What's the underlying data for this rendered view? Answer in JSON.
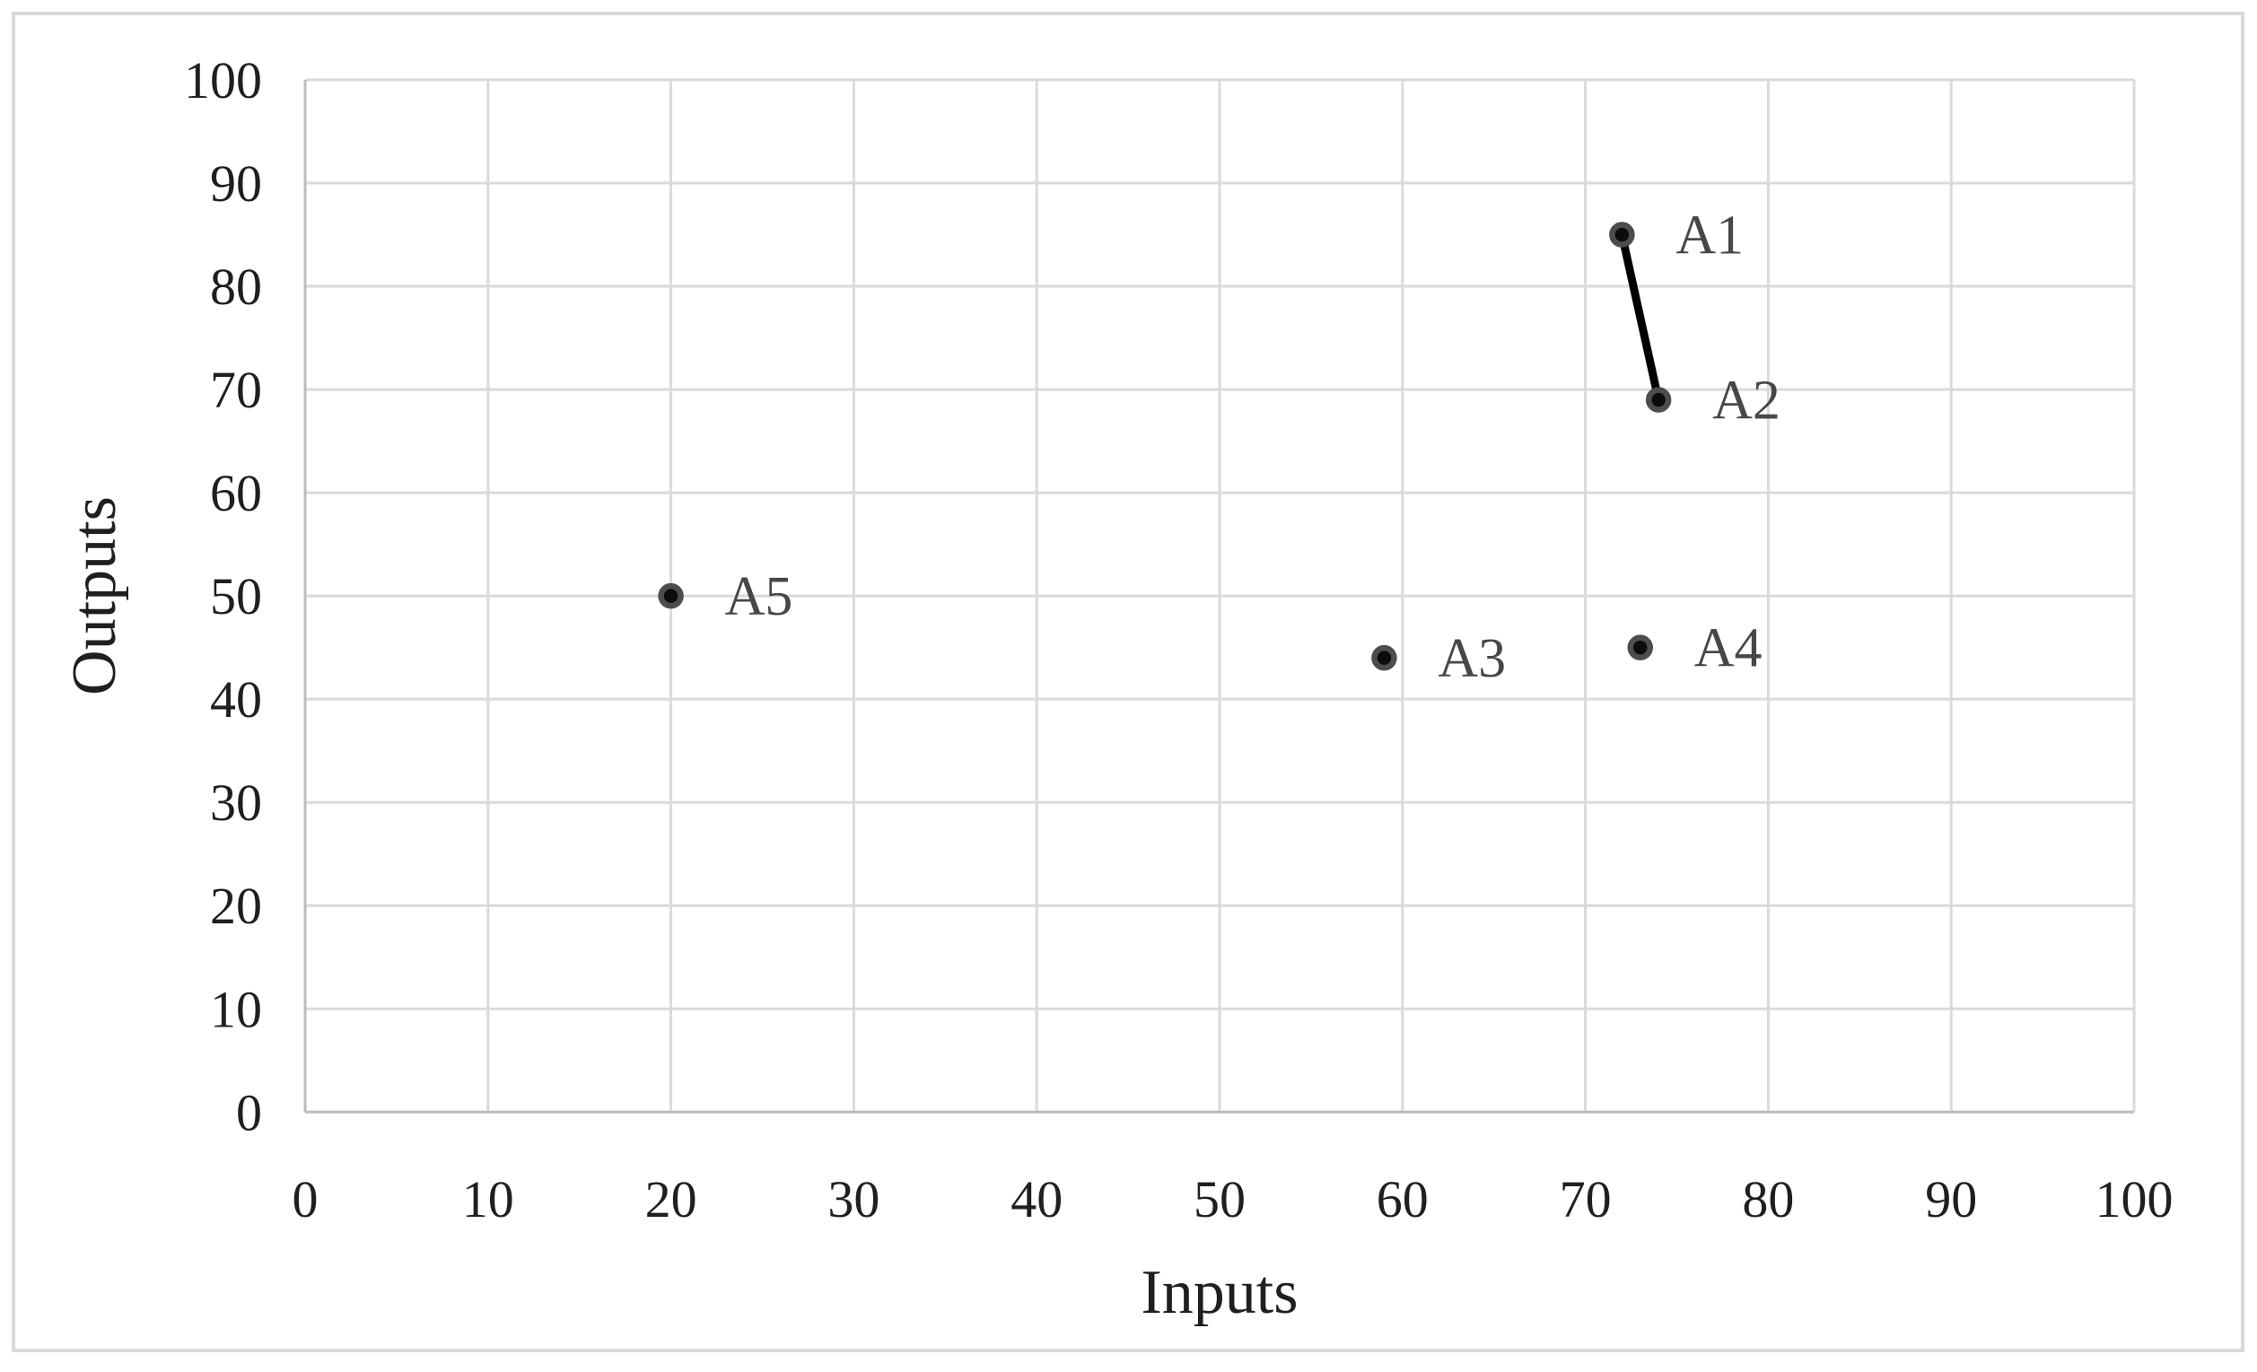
{
  "chart_data": {
    "type": "scatter",
    "title": "",
    "xlabel": "Inputs",
    "ylabel": "Outputs",
    "xlim": [
      0,
      100
    ],
    "ylim": [
      0,
      100
    ],
    "x_ticks": [
      0,
      10,
      20,
      30,
      40,
      50,
      60,
      70,
      80,
      90,
      100
    ],
    "y_ticks": [
      0,
      10,
      20,
      30,
      40,
      50,
      60,
      70,
      80,
      90,
      100
    ],
    "grid": true,
    "legend": "none",
    "points": [
      {
        "label": "A1",
        "x": 72,
        "y": 85
      },
      {
        "label": "A2",
        "x": 74,
        "y": 69
      },
      {
        "label": "A3",
        "x": 59,
        "y": 44
      },
      {
        "label": "A4",
        "x": 73,
        "y": 45
      },
      {
        "label": "A5",
        "x": 20,
        "y": 50
      }
    ],
    "segments": [
      {
        "from": "A1",
        "to": "A2"
      }
    ],
    "colors": {
      "gridline": "#dadada",
      "axis_line": "#bdbdbd",
      "chart_border": "#d9d9d9",
      "marker_fill": "#0c0c0c",
      "marker_ring": "#4d4d4d",
      "segment_line": "#000000",
      "tick_text": "#1f1f1f",
      "label_text": "#474747",
      "background": "#ffffff"
    }
  }
}
